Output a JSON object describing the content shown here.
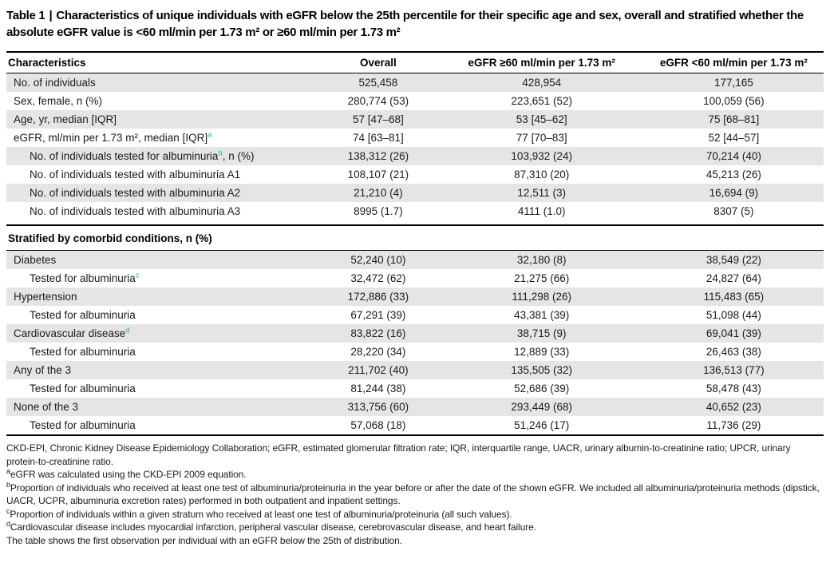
{
  "colors": {
    "accent_superscript": "#29a7d8",
    "row_shade": "#e5e5e5",
    "rule_black": "#000000",
    "text": "#1b1b1b"
  },
  "title": {
    "prefix": "Table 1",
    "separator": "|",
    "text": "Characteristics of unique individuals with eGFR below the 25th percentile for their specific age and sex, overall and stratified whether the absolute eGFR value is <60 ml/min per 1.73 m² or ≥60 ml/min per 1.73 m²"
  },
  "table": {
    "columns": [
      "Characteristics",
      "Overall",
      "eGFR ≥60 ml/min per 1.73 m²",
      "eGFR <60 ml/min per 1.73 m²"
    ],
    "sections": [
      {
        "header": null,
        "rows": [
          {
            "label": "No. of individuals",
            "sup": "",
            "suffix": "",
            "indent": false,
            "values": [
              "525,458",
              "428,954",
              "177,165"
            ]
          },
          {
            "label": "Sex, female, n (%)",
            "sup": "",
            "suffix": "",
            "indent": false,
            "values": [
              "280,774 (53)",
              "223,651 (52)",
              "100,059 (56)"
            ]
          },
          {
            "label": "Age, yr, median [IQR]",
            "sup": "",
            "suffix": "",
            "indent": false,
            "values": [
              "57 [47–68]",
              "53 [45–62]",
              "75 [68–81]"
            ]
          },
          {
            "label": "eGFR, ml/min per 1.73 m², median [IQR]",
            "sup": "a",
            "suffix": "",
            "indent": false,
            "values": [
              "74 [63–81]",
              "77 [70–83]",
              "52 [44–57]"
            ]
          },
          {
            "label": "No. of individuals tested for albuminuria",
            "sup": "b",
            "suffix": ", n (%)",
            "indent": true,
            "values": [
              "138,312 (26)",
              "103,932 (24)",
              "70,214 (40)"
            ]
          },
          {
            "label": "No. of individuals tested with albuminuria A1",
            "sup": "",
            "suffix": "",
            "indent": true,
            "values": [
              "108,107 (21)",
              "87,310 (20)",
              "45,213 (26)"
            ]
          },
          {
            "label": "No. of individuals tested with albuminuria A2",
            "sup": "",
            "suffix": "",
            "indent": true,
            "values": [
              "21,210 (4)",
              "12,511 (3)",
              "16,694 (9)"
            ]
          },
          {
            "label": "No. of individuals tested with albuminuria A3",
            "sup": "",
            "suffix": "",
            "indent": true,
            "values": [
              "8995 (1.7)",
              "4111 (1.0)",
              "8307 (5)"
            ]
          }
        ]
      },
      {
        "header": "Stratified by comorbid conditions, n (%)",
        "rows": [
          {
            "label": "Diabetes",
            "sup": "",
            "suffix": "",
            "indent": false,
            "values": [
              "52,240 (10)",
              "32,180 (8)",
              "38,549 (22)"
            ]
          },
          {
            "label": "Tested for albuminuria",
            "sup": "c",
            "suffix": "",
            "indent": true,
            "values": [
              "32,472 (62)",
              "21,275 (66)",
              "24,827 (64)"
            ]
          },
          {
            "label": "Hypertension",
            "sup": "",
            "suffix": "",
            "indent": false,
            "values": [
              "172,886 (33)",
              "111,298 (26)",
              "115,483 (65)"
            ]
          },
          {
            "label": "Tested for albuminuria",
            "sup": "",
            "suffix": "",
            "indent": true,
            "values": [
              "67,291 (39)",
              "43,381 (39)",
              "51,098 (44)"
            ]
          },
          {
            "label": "Cardiovascular disease",
            "sup": "d",
            "suffix": "",
            "indent": false,
            "values": [
              "83,822 (16)",
              "38,715 (9)",
              "69,041 (39)"
            ]
          },
          {
            "label": "Tested for albuminuria",
            "sup": "",
            "suffix": "",
            "indent": true,
            "values": [
              "28,220 (34)",
              "12,889 (33)",
              "26,463 (38)"
            ]
          },
          {
            "label": "Any of the 3",
            "sup": "",
            "suffix": "",
            "indent": false,
            "values": [
              "211,702 (40)",
              "135,505 (32)",
              "136,513 (77)"
            ]
          },
          {
            "label": "Tested for albuminuria",
            "sup": "",
            "suffix": "",
            "indent": true,
            "values": [
              "81,244 (38)",
              "52,686 (39)",
              "58,478 (43)"
            ]
          },
          {
            "label": "None of the 3",
            "sup": "",
            "suffix": "",
            "indent": false,
            "values": [
              "313,756 (60)",
              "293,449 (68)",
              "40,652 (23)"
            ]
          },
          {
            "label": "Tested for albuminuria",
            "sup": "",
            "suffix": "",
            "indent": true,
            "values": [
              "57,068 (18)",
              "51,246 (17)",
              "11,736 (29)"
            ]
          }
        ]
      }
    ]
  },
  "footnotes": [
    {
      "sup": "",
      "text": "CKD-EPI, Chronic Kidney Disease Epidemiology Collaboration; eGFR, estimated glomerular filtration rate; IQR, interquartile range, UACR, urinary albumin-to-creatinine ratio; UPCR, urinary protein-to-creatinine ratio."
    },
    {
      "sup": "a",
      "text": "eGFR was calculated using the CKD-EPI 2009 equation."
    },
    {
      "sup": "b",
      "text": "Proportion of individuals who received at least one test of albuminuria/proteinuria in the year before or after the date of the shown eGFR. We included all albuminuria/proteinuria methods (dipstick, UACR, UCPR, albuminuria excretion rates) performed in both outpatient and inpatient settings."
    },
    {
      "sup": "c",
      "text": "Proportion of individuals within a given stratum who received at least one test of albuminuria/proteinuria (all such values)."
    },
    {
      "sup": "d",
      "text": "Cardiovascular disease includes myocardial infarction, peripheral vascular disease, cerebrovascular disease, and heart failure."
    },
    {
      "sup": "",
      "text": "The table shows the first observation per individual with an eGFR below the 25th of distribution."
    }
  ]
}
